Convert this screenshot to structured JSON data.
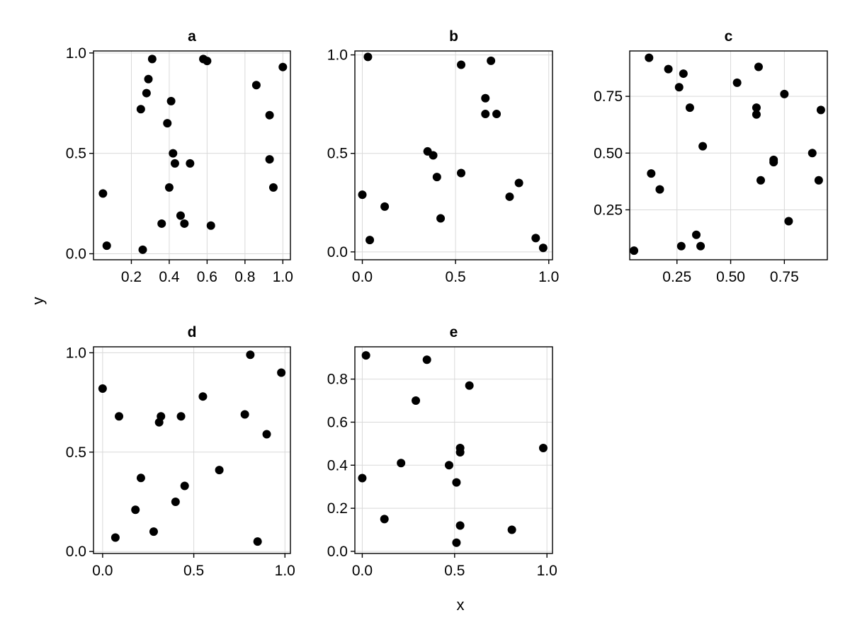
{
  "figure": {
    "xlabel": "x",
    "ylabel": "y"
  },
  "chart_data": [
    {
      "type": "scatter",
      "title": "a",
      "xlim": [
        0.0,
        1.04
      ],
      "ylim": [
        -0.03,
        1.01
      ],
      "xticks": [
        0.2,
        0.4,
        0.6,
        0.8,
        1.0
      ],
      "xtick_labels": [
        "0.2",
        "0.4",
        "0.6",
        "0.8",
        "1.0"
      ],
      "yticks": [
        0.0,
        0.5,
        1.0
      ],
      "ytick_labels": [
        "0.0",
        "0.5",
        "1.0"
      ],
      "grid": true,
      "points": [
        [
          0.05,
          0.3
        ],
        [
          0.07,
          0.04
        ],
        [
          0.25,
          0.72
        ],
        [
          0.28,
          0.8
        ],
        [
          0.29,
          0.87
        ],
        [
          0.31,
          0.97
        ],
        [
          0.36,
          0.15
        ],
        [
          0.26,
          0.02
        ],
        [
          0.39,
          0.65
        ],
        [
          0.4,
          0.33
        ],
        [
          0.41,
          0.76
        ],
        [
          0.42,
          0.5
        ],
        [
          0.43,
          0.45
        ],
        [
          0.46,
          0.19
        ],
        [
          0.48,
          0.15
        ],
        [
          0.51,
          0.45
        ],
        [
          0.58,
          0.97
        ],
        [
          0.6,
          0.96
        ],
        [
          0.62,
          0.14
        ],
        [
          0.86,
          0.84
        ],
        [
          0.93,
          0.69
        ],
        [
          0.93,
          0.47
        ],
        [
          0.95,
          0.33
        ],
        [
          1.0,
          0.93
        ]
      ]
    },
    {
      "type": "scatter",
      "title": "b",
      "xlim": [
        -0.04,
        1.02
      ],
      "ylim": [
        -0.04,
        1.02
      ],
      "xticks": [
        0.0,
        0.5,
        1.0
      ],
      "xtick_labels": [
        "0.0",
        "0.5",
        "1.0"
      ],
      "yticks": [
        0.0,
        0.5,
        1.0
      ],
      "ytick_labels": [
        "0.0",
        "0.5",
        "1.0"
      ],
      "grid": true,
      "points": [
        [
          0.0,
          0.29
        ],
        [
          0.03,
          0.99
        ],
        [
          0.04,
          0.06
        ],
        [
          0.12,
          0.23
        ],
        [
          0.35,
          0.51
        ],
        [
          0.38,
          0.49
        ],
        [
          0.4,
          0.38
        ],
        [
          0.42,
          0.17
        ],
        [
          0.53,
          0.4
        ],
        [
          0.53,
          0.95
        ],
        [
          0.66,
          0.78
        ],
        [
          0.66,
          0.7
        ],
        [
          0.69,
          0.97
        ],
        [
          0.72,
          0.7
        ],
        [
          0.79,
          0.28
        ],
        [
          0.84,
          0.35
        ],
        [
          0.93,
          0.07
        ],
        [
          0.97,
          0.02
        ]
      ]
    },
    {
      "type": "scatter",
      "title": "c",
      "xlim": [
        0.03,
        0.95
      ],
      "ylim": [
        0.03,
        0.95
      ],
      "xticks": [
        0.25,
        0.5,
        0.75
      ],
      "xtick_labels": [
        "0.25",
        "0.50",
        "0.75"
      ],
      "yticks": [
        0.25,
        0.5,
        0.75
      ],
      "ytick_labels": [
        "0.25",
        "0.50",
        "0.75"
      ],
      "grid": true,
      "points": [
        [
          0.05,
          0.07
        ],
        [
          0.12,
          0.92
        ],
        [
          0.13,
          0.41
        ],
        [
          0.17,
          0.34
        ],
        [
          0.21,
          0.87
        ],
        [
          0.26,
          0.79
        ],
        [
          0.28,
          0.85
        ],
        [
          0.27,
          0.09
        ],
        [
          0.31,
          0.7
        ],
        [
          0.34,
          0.14
        ],
        [
          0.36,
          0.09
        ],
        [
          0.37,
          0.53
        ],
        [
          0.53,
          0.81
        ],
        [
          0.62,
          0.7
        ],
        [
          0.62,
          0.67
        ],
        [
          0.63,
          0.88
        ],
        [
          0.64,
          0.38
        ],
        [
          0.7,
          0.47
        ],
        [
          0.7,
          0.46
        ],
        [
          0.75,
          0.76
        ],
        [
          0.77,
          0.2
        ],
        [
          0.88,
          0.5
        ],
        [
          0.91,
          0.38
        ],
        [
          0.92,
          0.69
        ]
      ]
    },
    {
      "type": "scatter",
      "title": "d",
      "xlim": [
        -0.05,
        1.03
      ],
      "ylim": [
        -0.01,
        1.03
      ],
      "xticks": [
        0.0,
        0.5,
        1.0
      ],
      "xtick_labels": [
        "0.0",
        "0.5",
        "1.0"
      ],
      "yticks": [
        0.0,
        0.5,
        1.0
      ],
      "ytick_labels": [
        "0.0",
        "0.5",
        "1.0"
      ],
      "grid": true,
      "points": [
        [
          0.0,
          0.82
        ],
        [
          0.07,
          0.07
        ],
        [
          0.09,
          0.68
        ],
        [
          0.18,
          0.21
        ],
        [
          0.21,
          0.37
        ],
        [
          0.28,
          0.1
        ],
        [
          0.31,
          0.65
        ],
        [
          0.32,
          0.68
        ],
        [
          0.4,
          0.25
        ],
        [
          0.43,
          0.68
        ],
        [
          0.45,
          0.33
        ],
        [
          0.55,
          0.78
        ],
        [
          0.64,
          0.41
        ],
        [
          0.78,
          0.69
        ],
        [
          0.81,
          0.99
        ],
        [
          0.85,
          0.05
        ],
        [
          0.9,
          0.59
        ],
        [
          0.98,
          0.9
        ]
      ]
    },
    {
      "type": "scatter",
      "title": "e",
      "xlim": [
        -0.04,
        1.03
      ],
      "ylim": [
        -0.01,
        0.95
      ],
      "xticks": [
        0.0,
        0.5,
        1.0
      ],
      "xtick_labels": [
        "0.0",
        "0.5",
        "1.0"
      ],
      "yticks": [
        0.0,
        0.2,
        0.4,
        0.6,
        0.8
      ],
      "ytick_labels": [
        "0.0",
        "0.2",
        "0.4",
        "0.6",
        "0.8"
      ],
      "grid": true,
      "points": [
        [
          0.0,
          0.34
        ],
        [
          0.02,
          0.91
        ],
        [
          0.12,
          0.15
        ],
        [
          0.21,
          0.41
        ],
        [
          0.29,
          0.7
        ],
        [
          0.35,
          0.89
        ],
        [
          0.47,
          0.4
        ],
        [
          0.51,
          0.32
        ],
        [
          0.51,
          0.04
        ],
        [
          0.53,
          0.48
        ],
        [
          0.53,
          0.46
        ],
        [
          0.53,
          0.12
        ],
        [
          0.58,
          0.77
        ],
        [
          0.81,
          0.1
        ],
        [
          0.98,
          0.48
        ]
      ]
    }
  ]
}
